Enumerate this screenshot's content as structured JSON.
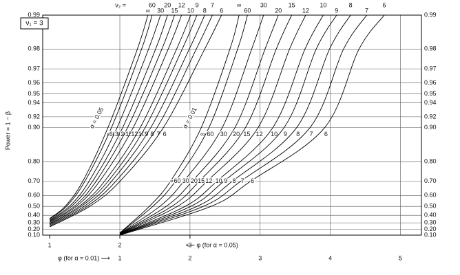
{
  "chart_data": {
    "type": "line",
    "panel_label": "ν₁ = 3",
    "ylabel": "Power = 1 − β",
    "ylim": [
      0.1,
      0.99
    ],
    "yscale": "log-complement",
    "yticks": [
      {
        "value": 0.1,
        "label": "0.10"
      },
      {
        "value": 0.2,
        "label": "0.20"
      },
      {
        "value": 0.3,
        "label": "0.30"
      },
      {
        "value": 0.4,
        "label": "0.40"
      },
      {
        "value": 0.5,
        "label": "0.50"
      },
      {
        "value": 0.6,
        "label": "0.60"
      },
      {
        "value": 0.7,
        "label": "0.70"
      },
      {
        "value": 0.8,
        "label": "0.80"
      },
      {
        "value": 0.9,
        "label": "0.90"
      },
      {
        "value": 0.92,
        "label": "0.92"
      },
      {
        "value": 0.94,
        "label": "0.94"
      },
      {
        "value": 0.95,
        "label": "0.95"
      },
      {
        "value": 0.96,
        "label": "0.96"
      },
      {
        "value": 0.97,
        "label": "0.97"
      },
      {
        "value": 0.98,
        "label": "0.98"
      },
      {
        "value": 0.99,
        "label": "0.99"
      }
    ],
    "xlabel": "φ (for α = 0.01) ⟶",
    "xlim": [
      -0.1,
      5.3
    ],
    "xticks": [
      1,
      2,
      3,
      4,
      5
    ],
    "x2label": "⟵ φ (for α = 0.05)",
    "x2lim": [
      0.9,
      6.3
    ],
    "x2ticks": [
      1,
      2,
      3
    ],
    "legend_prefix": "ν₂ =",
    "grid": true,
    "color": "#000000",
    "annotations": [
      {
        "text": "α = 0.05",
        "axis": "x2"
      },
      {
        "text": "α = 0.01",
        "axis": "x"
      }
    ],
    "series": [
      {
        "name": "∞",
        "axis": "x2",
        "x": [
          1.0,
          1.22,
          1.47,
          1.83,
          2.25,
          2.4
        ],
        "values": [
          0.36,
          0.5,
          0.7,
          0.9,
          0.98,
          0.99
        ]
      },
      {
        "name": "60",
        "axis": "x2",
        "x": [
          1.0,
          1.24,
          1.5,
          1.88,
          2.31,
          2.46
        ],
        "values": [
          0.353,
          0.5,
          0.7,
          0.9,
          0.98,
          0.99
        ]
      },
      {
        "name": "30",
        "axis": "x2",
        "x": [
          1.0,
          1.28,
          1.56,
          1.96,
          2.41,
          2.58
        ],
        "values": [
          0.34,
          0.5,
          0.7,
          0.9,
          0.98,
          0.99
        ]
      },
      {
        "name": "20",
        "axis": "x2",
        "x": [
          1.0,
          1.31,
          1.61,
          2.04,
          2.51,
          2.68
        ],
        "values": [
          0.328,
          0.5,
          0.7,
          0.9,
          0.98,
          0.99
        ]
      },
      {
        "name": "15",
        "axis": "x2",
        "x": [
          1.0,
          1.35,
          1.66,
          2.11,
          2.6,
          2.78
        ],
        "values": [
          0.317,
          0.5,
          0.7,
          0.9,
          0.98,
          0.99
        ]
      },
      {
        "name": "12",
        "axis": "x2",
        "x": [
          1.0,
          1.38,
          1.71,
          2.19,
          2.69,
          2.88
        ],
        "values": [
          0.305,
          0.5,
          0.7,
          0.9,
          0.98,
          0.99
        ]
      },
      {
        "name": "10",
        "axis": "x2",
        "x": [
          1.0,
          1.42,
          1.78,
          2.29,
          2.81,
          3.01
        ],
        "values": [
          0.29,
          0.5,
          0.7,
          0.9,
          0.98,
          0.99
        ]
      },
      {
        "name": "9",
        "axis": "x2",
        "x": [
          1.0,
          1.45,
          1.83,
          2.36,
          2.89,
          3.1
        ],
        "values": [
          0.28,
          0.5,
          0.7,
          0.9,
          0.98,
          0.99
        ]
      },
      {
        "name": "8",
        "axis": "x2",
        "x": [
          1.0,
          1.49,
          1.88,
          2.44,
          2.99,
          3.21
        ],
        "values": [
          0.268,
          0.5,
          0.7,
          0.9,
          0.98,
          0.99
        ]
      },
      {
        "name": "7",
        "axis": "x2",
        "x": [
          1.0,
          1.53,
          1.94,
          2.53,
          3.09,
          3.32
        ],
        "values": [
          0.254,
          0.5,
          0.7,
          0.9,
          0.98,
          0.99
        ]
      },
      {
        "name": "6",
        "axis": "x2",
        "x": [
          1.0,
          1.57,
          2.0,
          2.62,
          3.21,
          3.45
        ],
        "values": [
          0.24,
          0.5,
          0.7,
          0.9,
          0.98,
          0.99
        ]
      },
      {
        "name": "∞",
        "axis": "x",
        "x": [
          1.0,
          1.42,
          1.72,
          2.16,
          2.57,
          2.7
        ],
        "values": [
          0.14,
          0.5,
          0.7,
          0.9,
          0.98,
          0.99
        ]
      },
      {
        "name": "60",
        "axis": "x",
        "x": [
          1.0,
          1.47,
          1.79,
          2.27,
          2.68,
          2.82
        ],
        "values": [
          0.138,
          0.5,
          0.7,
          0.9,
          0.98,
          0.99
        ]
      },
      {
        "name": "30",
        "axis": "x",
        "x": [
          1.0,
          1.57,
          1.91,
          2.46,
          2.88,
          3.05
        ],
        "values": [
          0.133,
          0.5,
          0.7,
          0.9,
          0.98,
          0.99
        ]
      },
      {
        "name": "20",
        "axis": "x",
        "x": [
          1.0,
          1.66,
          2.03,
          2.64,
          3.07,
          3.26
        ],
        "values": [
          0.129,
          0.5,
          0.7,
          0.9,
          0.98,
          0.99
        ]
      },
      {
        "name": "15",
        "axis": "x",
        "x": [
          1.0,
          1.74,
          2.13,
          2.79,
          3.23,
          3.45
        ],
        "values": [
          0.126,
          0.5,
          0.7,
          0.9,
          0.98,
          0.99
        ]
      },
      {
        "name": "12",
        "axis": "x",
        "x": [
          1.0,
          1.82,
          2.24,
          2.97,
          3.42,
          3.65
        ],
        "values": [
          0.122,
          0.5,
          0.7,
          0.9,
          0.98,
          0.99
        ]
      },
      {
        "name": "10",
        "axis": "x",
        "x": [
          1.0,
          1.93,
          2.38,
          3.18,
          3.64,
          3.9
        ],
        "values": [
          0.117,
          0.5,
          0.7,
          0.9,
          0.98,
          0.99
        ]
      },
      {
        "name": "9",
        "axis": "x",
        "x": [
          1.0,
          2.01,
          2.48,
          3.34,
          3.8,
          4.09
        ],
        "values": [
          0.113,
          0.5,
          0.7,
          0.9,
          0.98,
          0.99
        ]
      },
      {
        "name": "8",
        "axis": "x",
        "x": [
          1.0,
          2.1,
          2.6,
          3.52,
          3.99,
          4.29
        ],
        "values": [
          0.109,
          0.5,
          0.7,
          0.9,
          0.98,
          0.99
        ]
      },
      {
        "name": "7",
        "axis": "x",
        "x": [
          1.0,
          2.19,
          2.72,
          3.71,
          4.19,
          4.52
        ],
        "values": [
          0.105,
          0.5,
          0.7,
          0.9,
          0.98,
          0.99
        ]
      },
      {
        "name": "6",
        "axis": "x",
        "x": [
          1.0,
          2.3,
          2.86,
          3.92,
          4.41,
          4.77
        ],
        "values": [
          0.1,
          0.5,
          0.7,
          0.9,
          0.98,
          0.99
        ]
      }
    ]
  }
}
